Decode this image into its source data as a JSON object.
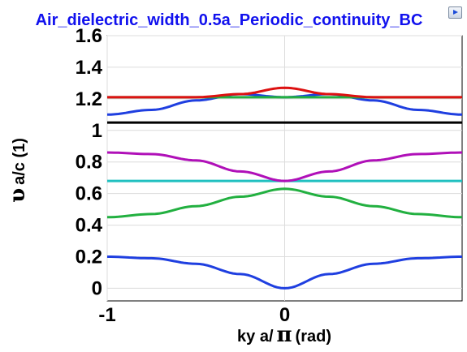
{
  "chart_data": {
    "type": "line",
    "title": "Air_dielectric_width_0.5a_Periodic_continuity_BC",
    "xlabel_prefix": "ky a/",
    "xlabel_symbol": "π",
    "xlabel_suffix": "(rad)",
    "ylabel_symbol": "υ",
    "ylabel_suffix": "a/c (1)",
    "xlim": [
      -1,
      1
    ],
    "ylim": [
      -0.08,
      1.6
    ],
    "xticks": [
      -1,
      0
    ],
    "xtick_labels": [
      "-1",
      "0"
    ],
    "yticks": [
      0,
      0.2,
      0.4,
      0.6,
      0.8,
      1,
      1.2,
      1.4,
      1.6
    ],
    "ytick_labels": [
      "0",
      "0.2",
      "0.4",
      "0.6",
      "0.8",
      "1",
      "1.2",
      "1.4",
      "1.6"
    ],
    "grid": true,
    "series": [
      {
        "color": "#1f3fe0",
        "x": [
          -1,
          -0.75,
          -0.5,
          -0.25,
          0,
          0.25,
          0.5,
          0.75,
          1
        ],
        "y": [
          0.2,
          0.19,
          0.155,
          0.09,
          0.0,
          0.09,
          0.155,
          0.19,
          0.2
        ]
      },
      {
        "color": "#22b040",
        "x": [
          -1,
          -0.75,
          -0.5,
          -0.25,
          0,
          0.25,
          0.5,
          0.75,
          1
        ],
        "y": [
          0.45,
          0.47,
          0.52,
          0.58,
          0.63,
          0.58,
          0.52,
          0.47,
          0.45
        ]
      },
      {
        "color": "#20c0c0",
        "x": [
          -1,
          1
        ],
        "y": [
          0.68,
          0.68
        ]
      },
      {
        "color": "#b010b8",
        "x": [
          -1,
          -0.75,
          -0.5,
          -0.25,
          0,
          0.25,
          0.5,
          0.75,
          1
        ],
        "y": [
          0.86,
          0.85,
          0.81,
          0.74,
          0.68,
          0.74,
          0.81,
          0.85,
          0.86
        ]
      },
      {
        "color": "#000000",
        "x": [
          -1,
          1
        ],
        "y": [
          1.05,
          1.05
        ]
      },
      {
        "color": "#1f3fe0",
        "x": [
          -1,
          -0.75,
          -0.5,
          -0.25,
          0,
          0.25,
          0.5,
          0.75,
          1
        ],
        "y": [
          1.1,
          1.13,
          1.19,
          1.23,
          1.21,
          1.23,
          1.19,
          1.13,
          1.1
        ]
      },
      {
        "color": "#22b040",
        "x": [
          -1,
          1
        ],
        "y": [
          1.21,
          1.21
        ]
      },
      {
        "color": "#dd1111",
        "x": [
          -1,
          -0.5,
          -0.25,
          0,
          0.25,
          0.5,
          1
        ],
        "y": [
          1.21,
          1.21,
          1.23,
          1.27,
          1.23,
          1.21,
          1.21
        ]
      }
    ]
  }
}
